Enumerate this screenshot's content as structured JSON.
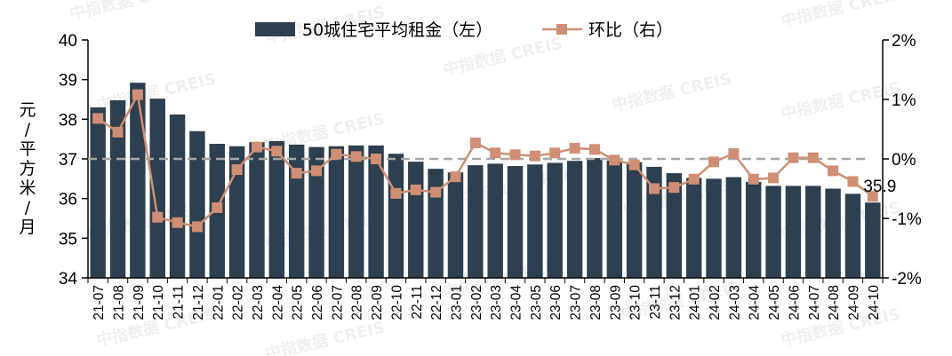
{
  "chart_data": {
    "type": "bar",
    "categories": [
      "21-07",
      "21-08",
      "21-09",
      "21-10",
      "21-11",
      "21-12",
      "22-01",
      "22-02",
      "22-03",
      "22-04",
      "22-05",
      "22-06",
      "22-07",
      "22-08",
      "22-09",
      "22-10",
      "22-11",
      "22-12",
      "23-01",
      "23-02",
      "23-03",
      "23-04",
      "23-05",
      "23-06",
      "23-07",
      "23-08",
      "23-09",
      "23-10",
      "23-11",
      "23-12",
      "24-01",
      "24-02",
      "24-03",
      "24-04",
      "24-05",
      "24-06",
      "24-07",
      "24-08",
      "24-09",
      "24-10"
    ],
    "series": [
      {
        "name": "50城住宅平均租金（左）",
        "type": "bar",
        "axis": "left",
        "color": "#2e3f4f",
        "values": [
          38.3,
          38.48,
          38.92,
          38.52,
          38.12,
          37.7,
          37.38,
          37.32,
          37.42,
          37.45,
          37.36,
          37.3,
          37.32,
          37.34,
          37.34,
          37.13,
          36.93,
          36.75,
          36.66,
          36.84,
          36.88,
          36.82,
          36.86,
          36.9,
          36.95,
          37.02,
          36.96,
          36.92,
          36.8,
          36.64,
          36.52,
          36.5,
          36.54,
          36.42,
          36.32,
          36.32,
          36.32,
          36.25,
          36.12,
          35.9
        ]
      },
      {
        "name": "环比（右）",
        "type": "line",
        "axis": "right",
        "color": "#cf8f74",
        "values": [
          0.68,
          0.45,
          1.08,
          -0.98,
          -1.07,
          -1.14,
          -0.82,
          -0.18,
          0.2,
          0.13,
          -0.24,
          -0.2,
          0.08,
          0.04,
          0.0,
          -0.58,
          -0.52,
          -0.56,
          -0.3,
          0.27,
          0.1,
          0.07,
          0.05,
          0.1,
          0.18,
          0.16,
          -0.02,
          -0.1,
          -0.5,
          -0.48,
          -0.34,
          -0.05,
          0.09,
          -0.34,
          -0.32,
          0.02,
          0.02,
          -0.2,
          -0.38,
          -0.63
        ]
      }
    ],
    "y_left": {
      "label": "元/平方米/月",
      "ylim": [
        34,
        40
      ],
      "ticks": [
        "34",
        "35",
        "36",
        "37",
        "38",
        "39",
        "40"
      ]
    },
    "y_right": {
      "ylim": [
        -2,
        2
      ],
      "ticks": [
        "-2%",
        "-1%",
        "0%",
        "1%",
        "2%"
      ],
      "reference_line": 0
    },
    "annotation": "35.9",
    "legend_position": "top",
    "watermark": "中指数据 CREIS",
    "grid": false
  }
}
